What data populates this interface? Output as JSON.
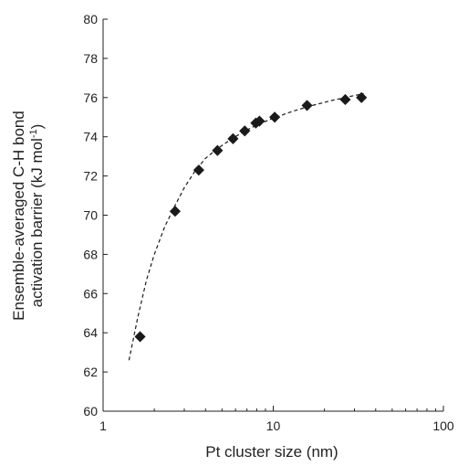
{
  "chart_data": {
    "type": "scatter",
    "xlabel": "Pt cluster size (nm)",
    "ylabel_line1": "Ensemble-averaged C-H bond",
    "ylabel_line2_main": "activation barrier (kJ mol",
    "ylabel_line2_sup": "-1",
    "ylabel_line2_close": ")",
    "x_scale": "log",
    "xlim": [
      1,
      100
    ],
    "ylim": [
      60,
      80
    ],
    "x_ticks": [
      1,
      10,
      100
    ],
    "x_tick_labels": [
      "1",
      "10",
      "100"
    ],
    "y_ticks": [
      60,
      62,
      64,
      66,
      68,
      70,
      72,
      74,
      76,
      78,
      80
    ],
    "y_tick_labels": [
      "60",
      "62",
      "64",
      "66",
      "68",
      "70",
      "72",
      "74",
      "76",
      "78",
      "80"
    ],
    "grid": false,
    "legend": "none",
    "marker": "diamond",
    "marker_color": "#1a1a1a",
    "series": [
      {
        "x": [
          1.65,
          2.65,
          3.65,
          4.7,
          5.8,
          6.8,
          7.9,
          8.3,
          10.2,
          15.8,
          26.5,
          33.0
        ],
        "y": [
          63.8,
          70.2,
          72.3,
          73.3,
          73.9,
          74.3,
          74.7,
          74.8,
          75.0,
          75.6,
          75.9,
          76.0
        ]
      }
    ],
    "trendline": {
      "style": "dashed",
      "color": "#1a1a1a",
      "x": [
        1.42,
        1.6,
        1.8,
        2.0,
        2.3,
        2.65,
        3.0,
        3.5,
        4.0,
        4.7,
        5.5,
        6.5,
        8.0,
        10.0,
        13.0,
        17.0,
        22.0,
        28.0,
        34.0
      ],
      "y": [
        62.6,
        64.8,
        66.7,
        68.0,
        69.4,
        70.5,
        71.4,
        72.3,
        72.9,
        73.4,
        73.8,
        74.2,
        74.6,
        74.95,
        75.3,
        75.6,
        75.85,
        76.05,
        76.2
      ]
    }
  }
}
